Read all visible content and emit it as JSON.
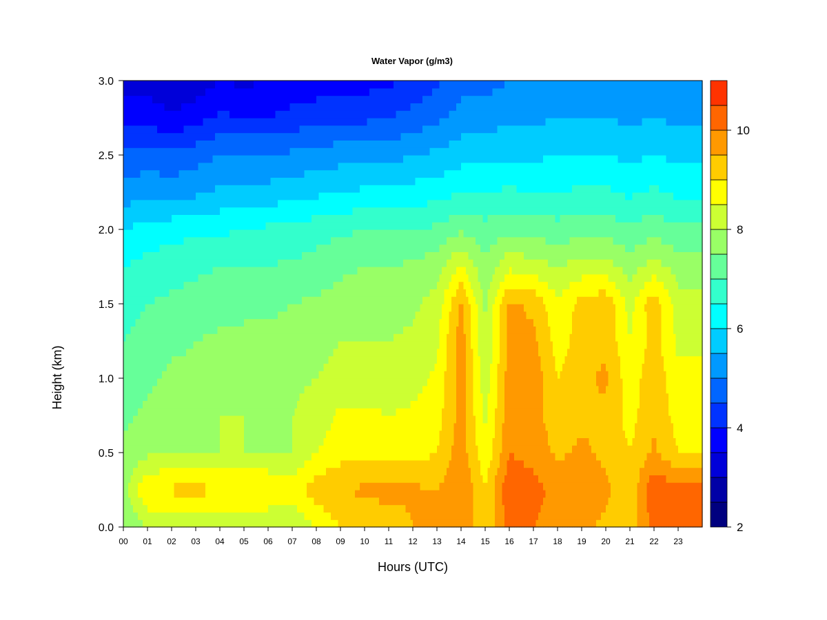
{
  "chart_data": {
    "type": "heatmap",
    "title": "Water Vapor (g/m3)",
    "xlabel": "Hours (UTC)",
    "ylabel": "Height (km)",
    "xlim": [
      0,
      24
    ],
    "ylim": [
      0.0,
      3.0
    ],
    "x_ticks": [
      "00",
      "01",
      "02",
      "03",
      "04",
      "05",
      "06",
      "07",
      "08",
      "09",
      "10",
      "11",
      "12",
      "13",
      "14",
      "15",
      "16",
      "17",
      "18",
      "19",
      "20",
      "21",
      "22",
      "23"
    ],
    "y_ticks": [
      "0.0",
      "0.5",
      "1.0",
      "1.5",
      "2.0",
      "2.5",
      "3.0"
    ],
    "colorbar": {
      "range": [
        2,
        11
      ],
      "step": 0.5,
      "ticks": [
        "2",
        "4",
        "6",
        "8",
        "10"
      ],
      "colors": [
        "#00007F",
        "#0000A6",
        "#0000D9",
        "#0000FF",
        "#0033FF",
        "#0066FF",
        "#0099FF",
        "#00CCFF",
        "#00FFFF",
        "#33FFCC",
        "#66FF99",
        "#99FF66",
        "#CCFF33",
        "#FFFF00",
        "#FFCC00",
        "#FF9900",
        "#FF6600",
        "#FF3300",
        "#FF0000",
        "#CC0000",
        "#990000",
        "#7F0000"
      ]
    },
    "x_hours": [
      0,
      1,
      2,
      3,
      4,
      5,
      6,
      7,
      8,
      9,
      10,
      11,
      12,
      13,
      14,
      15,
      16,
      17,
      18,
      19,
      20,
      21,
      22,
      23
    ],
    "y_heights_km": [
      0.0,
      0.25,
      0.5,
      0.75,
      1.0,
      1.25,
      1.5,
      1.75,
      2.0,
      2.25,
      2.5,
      2.75,
      3.0
    ],
    "values_by_hour": [
      [
        7.5,
        7.8,
        7.6,
        7.4,
        7.2,
        7.0,
        6.8,
        6.5,
        6.0,
        5.2,
        4.6,
        3.8,
        3.2
      ],
      [
        8.0,
        9.0,
        7.9,
        7.6,
        7.4,
        7.2,
        7.0,
        6.7,
        6.2,
        5.4,
        4.7,
        3.8,
        3.3
      ],
      [
        8.0,
        9.1,
        8.0,
        7.8,
        7.6,
        7.4,
        7.1,
        6.8,
        6.3,
        5.3,
        4.6,
        3.6,
        3.0
      ],
      [
        8.0,
        9.2,
        8.0,
        7.9,
        7.6,
        7.5,
        7.2,
        6.9,
        6.4,
        5.4,
        4.8,
        3.8,
        3.2
      ],
      [
        8.0,
        9.0,
        8.0,
        8.0,
        7.8,
        7.6,
        7.3,
        7.0,
        6.4,
        5.6,
        5.0,
        4.1,
        3.5
      ],
      [
        8.0,
        9.0,
        8.0,
        8.0,
        7.8,
        7.6,
        7.4,
        7.0,
        6.5,
        5.6,
        5.0,
        4.0,
        3.4
      ],
      [
        8.0,
        9.0,
        8.0,
        7.9,
        7.8,
        7.6,
        7.4,
        7.0,
        6.6,
        5.7,
        5.0,
        4.0,
        3.5
      ],
      [
        8.0,
        8.8,
        8.0,
        8.0,
        7.9,
        7.7,
        7.5,
        7.1,
        6.6,
        5.8,
        5.1,
        4.2,
        3.6
      ],
      [
        8.5,
        9.3,
        8.5,
        8.2,
        8.0,
        7.8,
        7.6,
        7.2,
        6.8,
        5.9,
        5.2,
        4.3,
        3.7
      ],
      [
        9.0,
        9.5,
        8.8,
        8.6,
        8.2,
        8.0,
        7.7,
        7.4,
        6.9,
        6.0,
        5.3,
        4.4,
        3.8
      ],
      [
        9.0,
        9.6,
        8.8,
        8.6,
        8.2,
        8.0,
        7.8,
        7.5,
        7.0,
        6.1,
        5.3,
        4.4,
        3.8
      ],
      [
        9.0,
        9.8,
        8.8,
        8.5,
        8.2,
        8.0,
        7.8,
        7.5,
        7.0,
        6.1,
        5.3,
        4.5,
        3.9
      ],
      [
        9.5,
        9.6,
        8.8,
        8.6,
        8.3,
        8.1,
        7.9,
        7.6,
        7.0,
        6.2,
        5.5,
        4.7,
        4.1
      ],
      [
        9.6,
        9.5,
        9.0,
        8.8,
        8.6,
        8.4,
        8.2,
        7.8,
        7.1,
        6.3,
        5.6,
        4.9,
        4.4
      ],
      [
        10.0,
        10.0,
        9.8,
        9.7,
        9.8,
        9.8,
        9.6,
        8.6,
        7.4,
        6.5,
        5.8,
        5.2,
        4.8
      ],
      [
        9.0,
        9.0,
        8.6,
        8.4,
        8.2,
        8.0,
        7.9,
        7.6,
        7.2,
        6.5,
        5.8,
        5.3,
        4.8
      ],
      [
        10.2,
        10.4,
        10.0,
        9.8,
        9.8,
        9.6,
        9.6,
        8.4,
        7.4,
        6.6,
        5.9,
        5.4,
        5.0
      ],
      [
        10.0,
        10.2,
        9.8,
        9.7,
        9.8,
        9.6,
        9.4,
        8.2,
        7.3,
        6.5,
        5.9,
        5.4,
        5.0
      ],
      [
        9.6,
        9.8,
        9.4,
        9.2,
        9.0,
        8.8,
        8.6,
        8.0,
        7.2,
        6.5,
        6.0,
        5.5,
        5.1
      ],
      [
        9.6,
        9.8,
        9.6,
        9.4,
        9.4,
        9.2,
        9.2,
        8.2,
        7.3,
        6.6,
        6.0,
        5.5,
        5.1
      ],
      [
        9.4,
        9.6,
        9.4,
        9.4,
        9.6,
        9.4,
        9.4,
        8.2,
        7.3,
        6.6,
        6.0,
        5.5,
        5.1
      ],
      [
        9.2,
        9.2,
        9.0,
        8.8,
        8.7,
        8.5,
        8.3,
        7.8,
        7.1,
        6.4,
        5.9,
        5.4,
        5.0
      ],
      [
        10.2,
        10.4,
        9.6,
        9.4,
        9.4,
        9.2,
        9.4,
        8.2,
        7.3,
        6.6,
        6.0,
        5.5,
        5.1
      ],
      [
        10.0,
        10.2,
        9.0,
        8.8,
        8.6,
        8.4,
        8.2,
        7.8,
        7.1,
        6.4,
        5.9,
        5.4,
        5.0
      ]
    ]
  }
}
